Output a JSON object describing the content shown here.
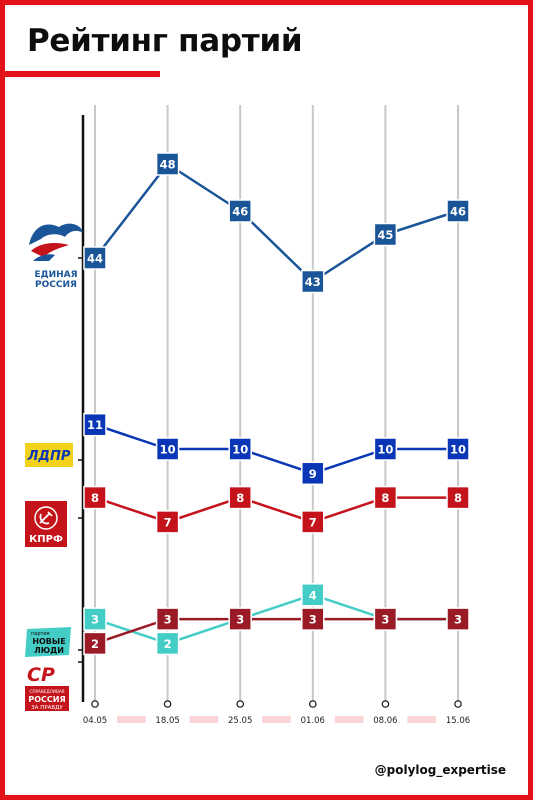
{
  "header": {
    "title": "Рейтинг партий"
  },
  "footer": {
    "handle": "@polylog_expertise"
  },
  "logos": {
    "er": {
      "line1": "ЕДИНАЯ",
      "line2": "РОССИЯ"
    },
    "ldpr": {
      "text": "ЛДПР"
    },
    "kprf": {
      "text": "КПРФ"
    },
    "nl": {
      "small": "партия",
      "line1": "НОВЫЕ",
      "line2": "ЛЮДИ"
    },
    "sr": {
      "mark": "СР",
      "line1": "СПРАВЕДЛИВАЯ",
      "line2": "РОССИЯ",
      "line3": "ЗА ПРАВДУ"
    }
  },
  "colors": {
    "er": "#1a5598",
    "ldpr": "#0a37b6",
    "kprf": "#c4131a",
    "nl": "#44cdc6",
    "sr": "#9a1a25",
    "accent": "#e4131b",
    "gridline": "#c8c8c8",
    "axis": "#111111",
    "tick_band": "#fbd5d5"
  },
  "chart_data": {
    "type": "line",
    "categories": [
      "04.05",
      "18.05",
      "25.05",
      "01.06",
      "08.06",
      "15.06"
    ],
    "series": [
      {
        "name": "ЕДИНАЯ РОССИЯ",
        "color": "#1a5598",
        "values": [
          44,
          48,
          46,
          43,
          45,
          46
        ]
      },
      {
        "name": "ЛДПР",
        "color": "#0a37b6",
        "values": [
          11,
          10,
          10,
          9,
          10,
          10
        ]
      },
      {
        "name": "КПРФ",
        "color": "#c4131a",
        "values": [
          8,
          7,
          8,
          7,
          8,
          8
        ]
      },
      {
        "name": "НОВЫЕ ЛЮДИ",
        "color": "#44cdc6",
        "values": [
          3,
          2,
          3,
          4,
          3,
          3
        ]
      },
      {
        "name": "СПРАВЕДЛИВАЯ РОССИЯ",
        "color": "#9a1a25",
        "values": [
          2,
          3,
          3,
          3,
          3,
          3
        ]
      }
    ],
    "ylim": [
      0,
      50
    ],
    "grid": true,
    "legend": "left logos"
  }
}
